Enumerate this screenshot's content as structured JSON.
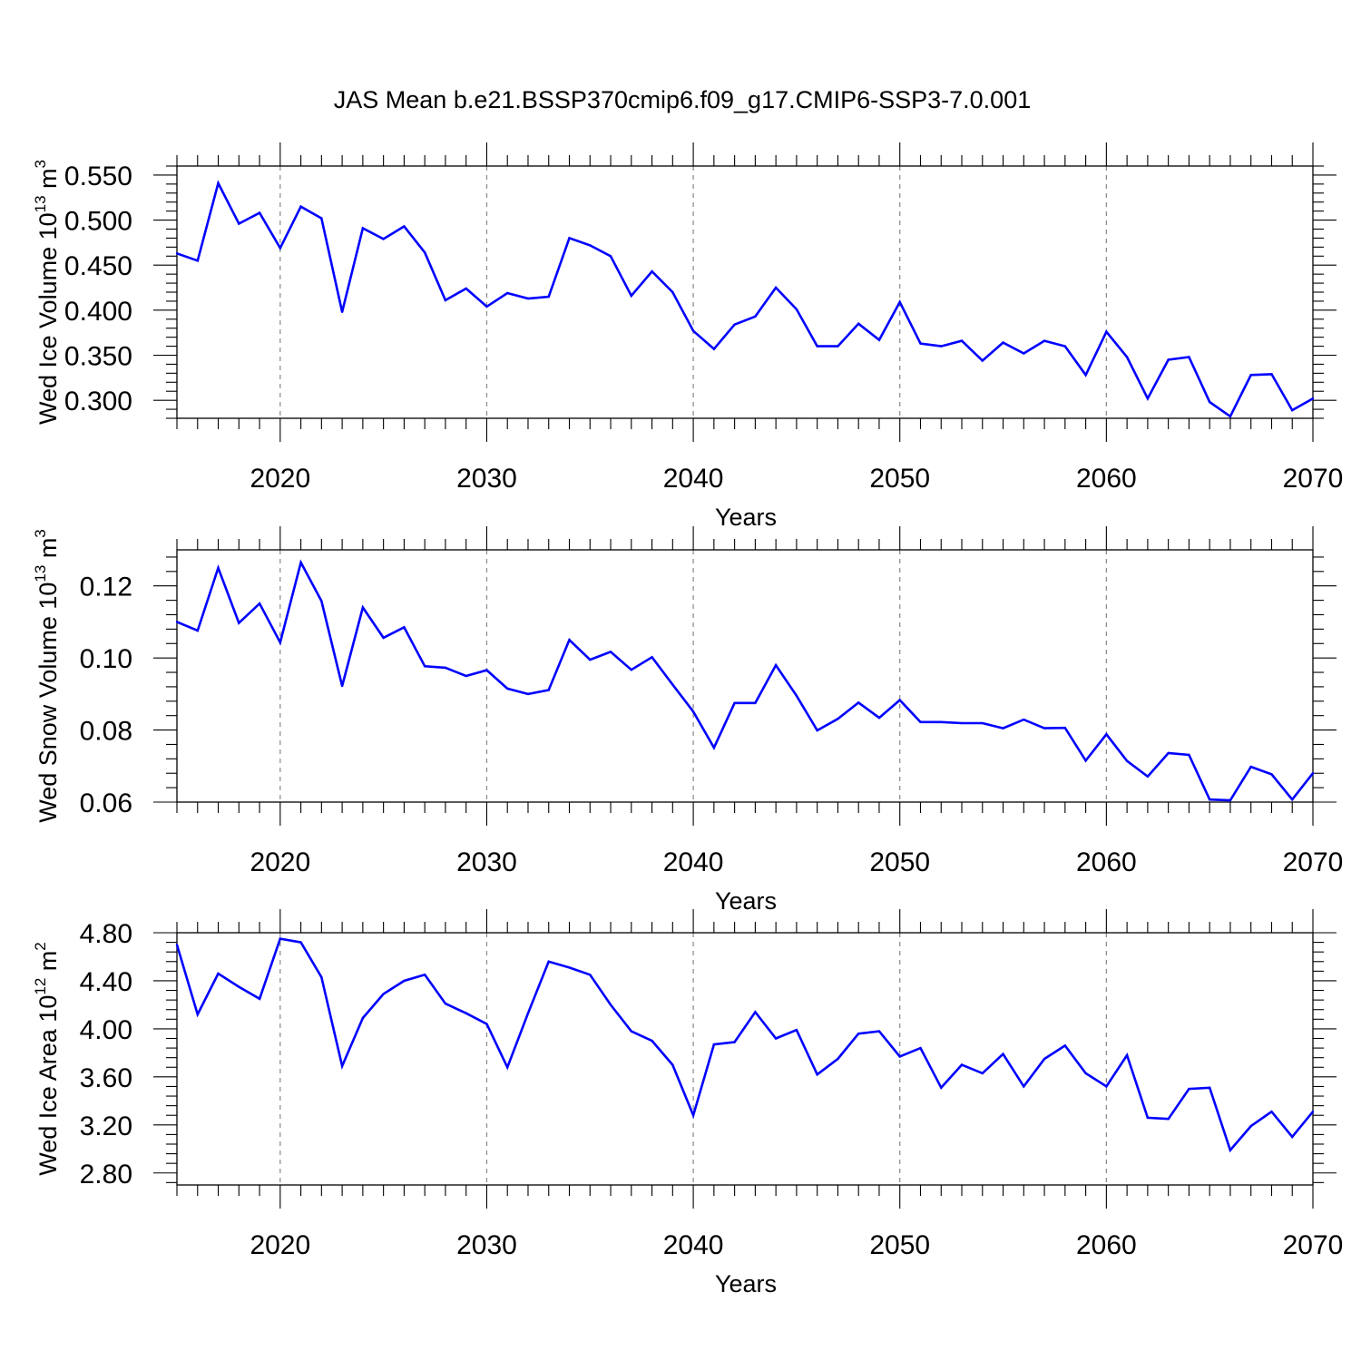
{
  "title": "JAS Mean b.e21.BSSP370cmip6.f09_g17.CMIP6-SSP3-7.0.001",
  "line_color": "#0000ff",
  "chart_data": [
    {
      "type": "line",
      "ylabel": "Wed Ice Volume",
      "ylabel_unit": {
        "base": "10",
        "exp": "13",
        "unit": "m",
        "unit_exp": "3"
      },
      "xlabel": "Years",
      "xlim": [
        2015,
        2070
      ],
      "ylim": [
        0.28,
        0.56
      ],
      "yticks": [
        0.3,
        0.35,
        0.4,
        0.45,
        0.5,
        0.55
      ],
      "ytick_labels": [
        "0.300",
        "0.350",
        "0.400",
        "0.450",
        "0.500",
        "0.550"
      ],
      "xticks": [
        2020,
        2030,
        2040,
        2050,
        2060,
        2070
      ],
      "xtick_labels": [
        "2020",
        "2030",
        "2040",
        "2050",
        "2060",
        "2070"
      ],
      "x": [
        2015,
        2016,
        2017,
        2018,
        2019,
        2020,
        2021,
        2022,
        2023,
        2024,
        2025,
        2026,
        2027,
        2028,
        2029,
        2030,
        2031,
        2032,
        2033,
        2034,
        2035,
        2036,
        2037,
        2038,
        2039,
        2040,
        2041,
        2042,
        2043,
        2044,
        2045,
        2046,
        2047,
        2048,
        2049,
        2050,
        2051,
        2052,
        2053,
        2054,
        2055,
        2056,
        2057,
        2058,
        2059,
        2060,
        2061,
        2062,
        2063,
        2064,
        2065,
        2066,
        2067,
        2068,
        2069,
        2070
      ],
      "values": [
        0.463,
        0.455,
        0.541,
        0.496,
        0.508,
        0.469,
        0.515,
        0.502,
        0.398,
        0.491,
        0.479,
        0.493,
        0.464,
        0.411,
        0.424,
        0.404,
        0.419,
        0.413,
        0.415,
        0.48,
        0.472,
        0.46,
        0.416,
        0.443,
        0.42,
        0.377,
        0.357,
        0.384,
        0.393,
        0.425,
        0.401,
        0.36,
        0.36,
        0.385,
        0.367,
        0.409,
        0.363,
        0.36,
        0.366,
        0.344,
        0.364,
        0.352,
        0.366,
        0.36,
        0.328,
        0.376,
        0.348,
        0.302,
        0.345,
        0.348,
        0.298,
        0.282,
        0.328,
        0.329,
        0.289,
        0.302
      ]
    },
    {
      "type": "line",
      "ylabel": "Wed Snow Volume",
      "ylabel_unit": {
        "base": "10",
        "exp": "13",
        "unit": "m",
        "unit_exp": "3"
      },
      "xlabel": "Years",
      "xlim": [
        2015,
        2070
      ],
      "ylim": [
        0.06,
        0.13
      ],
      "yticks": [
        0.06,
        0.08,
        0.1,
        0.12
      ],
      "ytick_labels": [
        "0.06",
        "0.08",
        "0.10",
        "0.12"
      ],
      "xticks": [
        2020,
        2030,
        2040,
        2050,
        2060,
        2070
      ],
      "xtick_labels": [
        "2020",
        "2030",
        "2040",
        "2050",
        "2060",
        "2070"
      ],
      "x": [
        2015,
        2016,
        2017,
        2018,
        2019,
        2020,
        2021,
        2022,
        2023,
        2024,
        2025,
        2026,
        2027,
        2028,
        2029,
        2030,
        2031,
        2032,
        2033,
        2034,
        2035,
        2036,
        2037,
        2038,
        2039,
        2040,
        2041,
        2042,
        2043,
        2044,
        2045,
        2046,
        2047,
        2048,
        2049,
        2050,
        2051,
        2052,
        2053,
        2054,
        2055,
        2056,
        2057,
        2058,
        2059,
        2060,
        2061,
        2062,
        2063,
        2064,
        2065,
        2066,
        2067,
        2068,
        2069,
        2070
      ],
      "values": [
        0.11,
        0.1076,
        0.125,
        0.1097,
        0.1151,
        0.1043,
        0.1265,
        0.1158,
        0.0922,
        0.114,
        0.1056,
        0.1085,
        0.0977,
        0.0973,
        0.095,
        0.0966,
        0.0915,
        0.09,
        0.0911,
        0.105,
        0.0995,
        0.1017,
        0.0967,
        0.1002,
        0.0926,
        0.0851,
        0.0751,
        0.0875,
        0.0875,
        0.098,
        0.0895,
        0.0799,
        0.0831,
        0.0876,
        0.0834,
        0.0883,
        0.0822,
        0.0822,
        0.0819,
        0.0819,
        0.0805,
        0.0829,
        0.0805,
        0.0806,
        0.0715,
        0.0788,
        0.0714,
        0.0671,
        0.0736,
        0.0731,
        0.0607,
        0.0605,
        0.0698,
        0.0677,
        0.0607,
        0.068
      ]
    },
    {
      "type": "line",
      "ylabel": "Wed Ice Area",
      "ylabel_unit": {
        "base": "10",
        "exp": "12",
        "unit": "m",
        "unit_exp": "2"
      },
      "xlabel": "Years",
      "xlim": [
        2015,
        2070
      ],
      "ylim": [
        2.7,
        4.8
      ],
      "yticks": [
        2.8,
        3.2,
        3.6,
        4.0,
        4.4,
        4.8
      ],
      "ytick_labels": [
        "2.80",
        "3.20",
        "3.60",
        "4.00",
        "4.40",
        "4.80"
      ],
      "xticks": [
        2020,
        2030,
        2040,
        2050,
        2060,
        2070
      ],
      "xtick_labels": [
        "2020",
        "2030",
        "2040",
        "2050",
        "2060",
        "2070"
      ],
      "x": [
        2015,
        2016,
        2017,
        2018,
        2019,
        2020,
        2021,
        2022,
        2023,
        2024,
        2025,
        2026,
        2027,
        2028,
        2029,
        2030,
        2031,
        2032,
        2033,
        2034,
        2035,
        2036,
        2037,
        2038,
        2039,
        2040,
        2041,
        2042,
        2043,
        2044,
        2045,
        2046,
        2047,
        2048,
        2049,
        2050,
        2051,
        2052,
        2053,
        2054,
        2055,
        2056,
        2057,
        2058,
        2059,
        2060,
        2061,
        2062,
        2063,
        2064,
        2065,
        2066,
        2067,
        2068,
        2069,
        2070
      ],
      "values": [
        4.7,
        4.12,
        4.46,
        4.35,
        4.25,
        4.75,
        4.72,
        4.43,
        3.69,
        4.09,
        4.29,
        4.4,
        4.45,
        4.21,
        4.13,
        4.04,
        3.68,
        4.13,
        4.56,
        4.51,
        4.45,
        4.2,
        3.98,
        3.9,
        3.7,
        3.28,
        3.87,
        3.89,
        4.14,
        3.92,
        3.99,
        3.62,
        3.75,
        3.96,
        3.98,
        3.77,
        3.84,
        3.51,
        3.7,
        3.63,
        3.79,
        3.52,
        3.75,
        3.86,
        3.63,
        3.52,
        3.78,
        3.26,
        3.25,
        3.5,
        3.51,
        2.99,
        3.19,
        3.31,
        3.1,
        3.31
      ]
    }
  ]
}
